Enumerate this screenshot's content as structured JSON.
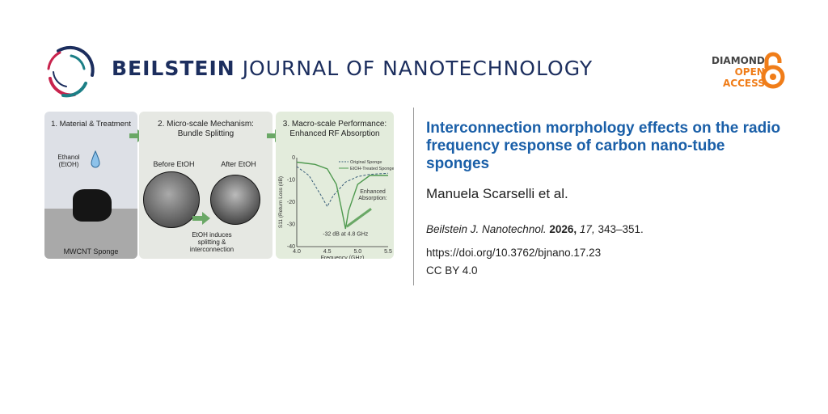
{
  "header": {
    "journal_bold": "BEILSTEIN",
    "journal_rest": "JOURNAL OF NANOTECHNOLOGY",
    "badge": {
      "line1": "DIAMOND",
      "line2": "OPEN",
      "line3": "ACCESS",
      "icon": "open-lock-icon",
      "colors": {
        "dark": "#444444",
        "orange": "#f07d19"
      }
    }
  },
  "article": {
    "title": "Interconnection morphology effects on the radio frequency response of carbon nano-tube sponges",
    "authors": "Manuela Scarselli et al.",
    "journal_abbrev": "Beilstein J. Nanotechnol.",
    "year": "2026,",
    "volume": "17,",
    "pages": "343–351.",
    "doi": "https://doi.org/10.3762/bjnano.17.23",
    "license": "CC BY 4.0"
  },
  "graphic": {
    "panel1": {
      "title": "1. Material & Treatment",
      "drop_label": "Ethanol (EtOH)",
      "base_label": "MWCNT Sponge"
    },
    "panel2": {
      "title1": "2. Micro-scale Mechanism:",
      "title2": "Bundle Splitting",
      "before": "Before EtOH",
      "after": "After EtOH",
      "caption1": "EtOH induces",
      "caption2": "splitting &",
      "caption3": "interconnection"
    },
    "panel3": {
      "title1": "3. Macro-scale Performance:",
      "title2": "Enhanced RF Absorption",
      "annot1": "Enhanced",
      "annot2": "Absorption:",
      "annot3": "-32 dB at 4.8 GHz"
    }
  },
  "chart_data": {
    "type": "line",
    "xlabel": "Frequency (GHz)",
    "ylabel": "S11 (Return Loss (dB)",
    "xlim": [
      4.0,
      5.5
    ],
    "ylim": [
      -40,
      0
    ],
    "xticks": [
      "4.0",
      "4.5",
      "5.0",
      "5.5"
    ],
    "yticks": [
      "0",
      "-10",
      "-20",
      "-30",
      "-40"
    ],
    "series": [
      {
        "name": "Original Sponge",
        "style": "dashed",
        "color": "#3a5f7a",
        "x": [
          4.0,
          4.2,
          4.4,
          4.5,
          4.6,
          4.8,
          5.0,
          5.2,
          5.5
        ],
        "y": [
          -4,
          -8,
          -17,
          -22,
          -17,
          -11,
          -8.5,
          -7.5,
          -7
        ]
      },
      {
        "name": "EtOH-Treated Sponge",
        "style": "solid",
        "color": "#4f9a4f",
        "x": [
          4.0,
          4.3,
          4.5,
          4.65,
          4.75,
          4.8,
          4.85,
          5.0,
          5.2,
          5.5
        ],
        "y": [
          -2,
          -3,
          -5,
          -12,
          -25,
          -32,
          -24,
          -12,
          -8,
          -8
        ]
      }
    ]
  }
}
